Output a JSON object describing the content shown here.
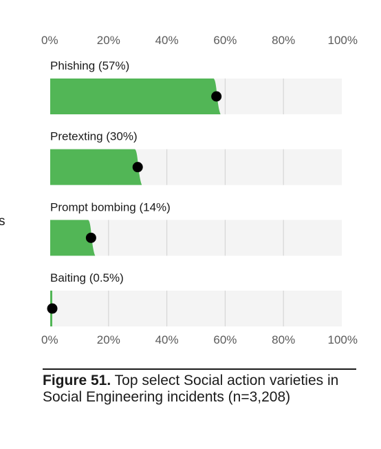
{
  "fragment_text": "s",
  "chart_data": {
    "type": "bar",
    "orientation": "horizontal",
    "categories": [
      "Phishing",
      "Pretexting",
      "Prompt bombing",
      "Baiting"
    ],
    "labels": [
      "Phishing (57%)",
      "Pretexting (30%)",
      "Prompt bombing (14%)",
      "Baiting (0.5%)"
    ],
    "values": [
      57,
      30,
      14,
      0.5
    ],
    "xlim": [
      0,
      100
    ],
    "ticks": [
      "0%",
      "20%",
      "40%",
      "60%",
      "80%",
      "100%"
    ],
    "tick_values": [
      0,
      20,
      40,
      60,
      80,
      100
    ],
    "axis_position": "top and bottom",
    "grid": true,
    "bar_color": "#52b656",
    "track_color": "#f4f4f4",
    "grid_color": "#d6d6d6",
    "marker_color": "#000000"
  },
  "caption": {
    "label": "Figure 51.",
    "text": " Top select Social action varieties in Social Engineering incidents (n=3,208)"
  }
}
